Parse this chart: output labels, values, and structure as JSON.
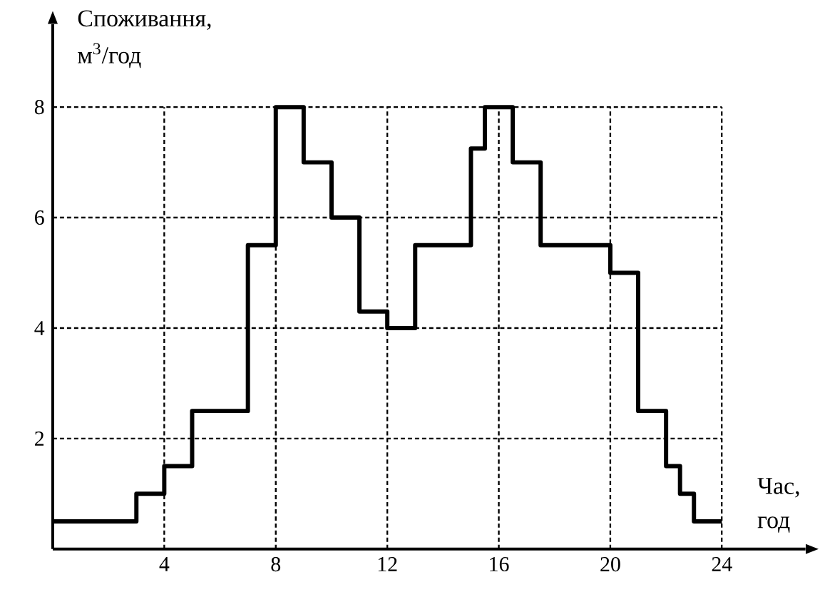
{
  "chart_data": {
    "type": "step",
    "xlabel": "Час, год",
    "ylabel": "Споживання, м$^{3}$/год",
    "x": [
      0,
      3,
      4,
      5,
      7,
      8,
      9,
      10,
      11,
      12,
      13,
      15,
      15.5,
      16.5,
      17.5,
      20,
      21,
      22,
      22.5,
      23,
      24
    ],
    "values": [
      0.5,
      1,
      1.5,
      2.5,
      5.5,
      8,
      7,
      6,
      4.3,
      4,
      5.5,
      7.25,
      8,
      7,
      5.5,
      5,
      2.5,
      1.5,
      1,
      0.5,
      0.5
    ],
    "color": "#000000",
    "xlim": [
      0,
      27
    ],
    "ylim": [
      0,
      9.5
    ],
    "xticks": [
      4,
      8,
      12,
      16,
      20,
      24
    ],
    "yticks": [
      2,
      4,
      6,
      8
    ],
    "grid": true
  }
}
